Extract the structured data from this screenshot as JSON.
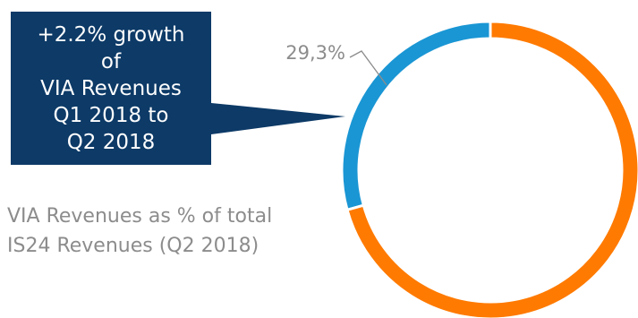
{
  "callout": {
    "lines": [
      "+2.2% growth",
      "of",
      "VIA Revenues",
      "Q1 2018 to",
      "Q2 2018"
    ],
    "background": "#0d3a67"
  },
  "caption": {
    "line1": "VIA Revenues as % of total",
    "line2": "IS24 Revenues (Q2 2018)"
  },
  "chart_data": {
    "type": "pie",
    "donut": true,
    "slices": [
      {
        "value": 29.3,
        "label": "29,3%",
        "color": "#1a96d4"
      },
      {
        "value": 70.7,
        "label": "",
        "color": "#ff7a00"
      }
    ],
    "title": "",
    "legend": "none"
  }
}
